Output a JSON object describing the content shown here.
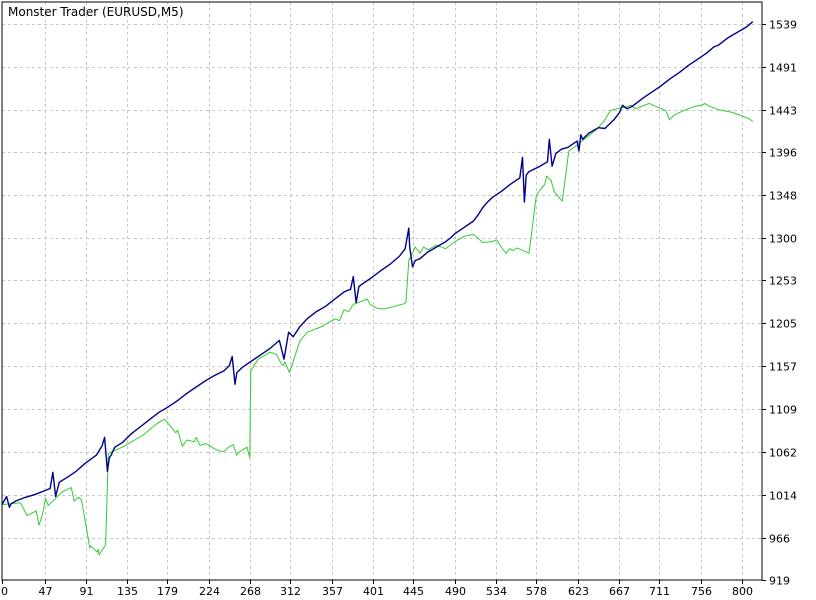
{
  "chart_data": {
    "type": "line",
    "title": "Monster Trader (EURUSD,M5)",
    "xlabel": "",
    "ylabel": "",
    "xlim": [
      0,
      822
    ],
    "ylim": [
      919,
      1563
    ],
    "x_ticks": [
      0,
      47,
      91,
      135,
      179,
      224,
      268,
      312,
      357,
      401,
      445,
      490,
      534,
      578,
      623,
      667,
      711,
      756,
      800
    ],
    "y_ticks": [
      919,
      966,
      1014,
      1062,
      1109,
      1157,
      1205,
      1253,
      1300,
      1348,
      1396,
      1443,
      1491,
      1539
    ],
    "grid": true,
    "legend": "none",
    "colors": {
      "balance": "#00008b",
      "equity": "#32cd32",
      "grid": "#c8c8c8",
      "axis": "#000000"
    },
    "series": [
      {
        "key": "equity",
        "x": [
          0,
          20,
          27,
          37,
          40,
          44,
          47,
          50,
          56,
          65,
          75,
          78,
          83,
          86,
          95,
          96,
          103,
          104,
          105,
          108,
          112,
          115,
          130,
          152,
          166,
          172,
          176,
          188,
          190,
          195,
          200,
          208,
          210,
          214,
          221,
          230,
          235,
          240,
          245,
          250,
          254,
          257,
          265,
          268,
          269,
          277,
          284,
          290,
          297,
          302,
          304,
          306,
          311,
          322,
          330,
          345,
          360,
          365,
          370,
          375,
          380,
          395,
          398,
          405,
          413,
          425,
          435,
          437,
          440,
          447,
          452,
          456,
          461,
          470,
          480,
          482,
          490,
          500,
          510,
          520,
          530,
          535,
          540,
          545,
          549,
          553,
          557,
          570,
          578,
          587,
          589,
          594,
          597,
          606,
          613,
          620,
          631,
          642,
          651,
          658,
          665,
          675,
          680,
          685,
          700,
          711,
          718,
          722,
          727,
          733,
          742,
          750,
          757,
          760,
          765,
          775,
          790,
          803,
          808,
          812
        ],
        "y": [
          1003,
          1005,
          991,
          996,
          980,
          993,
          1010,
          1002,
          1008,
          1017,
          1022,
          1007,
          1011,
          1008,
          955,
          957,
          950,
          953,
          947,
          952,
          958,
          1060,
          1067,
          1080,
          1092,
          1096,
          1098,
          1083,
          1086,
          1068,
          1075,
          1073,
          1078,
          1069,
          1071,
          1065,
          1063,
          1062,
          1067,
          1070,
          1058,
          1062,
          1067,
          1055,
          1152,
          1165,
          1169,
          1173,
          1170,
          1160,
          1158,
          1162,
          1150,
          1185,
          1195,
          1201,
          1210,
          1208,
          1220,
          1218,
          1226,
          1232,
          1226,
          1222,
          1221,
          1224,
          1227,
          1229,
          1275,
          1290,
          1283,
          1290,
          1287,
          1292,
          1288,
          1290,
          1296,
          1302,
          1304,
          1295,
          1296,
          1298,
          1290,
          1283,
          1288,
          1286,
          1289,
          1283,
          1348,
          1360,
          1369,
          1364,
          1352,
          1341,
          1397,
          1402,
          1411,
          1420,
          1430,
          1442,
          1444,
          1446,
          1448,
          1444,
          1450,
          1445,
          1442,
          1432,
          1437,
          1440,
          1444,
          1447,
          1448,
          1450,
          1447,
          1443,
          1440,
          1435,
          1433,
          1430
        ]
      },
      {
        "key": "balance",
        "x": [
          0,
          5,
          8,
          10,
          15,
          25,
          35,
          45,
          52,
          55,
          58,
          62,
          70,
          80,
          90,
          102,
          108,
          111,
          114,
          116,
          118,
          122,
          130,
          140,
          150,
          160,
          170,
          180,
          190,
          200,
          210,
          220,
          230,
          240,
          246,
          249,
          252,
          254,
          256,
          260,
          270,
          280,
          290,
          300,
          305,
          310,
          315,
          322,
          330,
          340,
          350,
          360,
          370,
          377,
          380,
          383,
          386,
          390,
          400,
          410,
          420,
          430,
          436,
          440,
          441,
          444,
          447,
          452,
          460,
          470,
          480,
          485,
          490,
          500,
          510,
          515,
          520,
          525,
          530,
          540,
          550,
          560,
          563,
          565,
          567,
          570,
          580,
          590,
          592,
          595,
          599,
          605,
          612,
          622,
          624,
          626,
          628,
          635,
          645,
          652,
          662,
          668,
          671,
          676,
          682,
          692,
          702,
          712,
          722,
          732,
          742,
          752,
          762,
          770,
          775,
          785,
          795,
          805,
          812
        ],
        "y": [
          1003,
          1012,
          1000,
          1004,
          1007,
          1011,
          1014,
          1018,
          1021,
          1039,
          1012,
          1028,
          1033,
          1040,
          1049,
          1058,
          1068,
          1078,
          1040,
          1055,
          1058,
          1067,
          1072,
          1082,
          1090,
          1098,
          1106,
          1112,
          1119,
          1127,
          1134,
          1141,
          1147,
          1152,
          1158,
          1168,
          1137,
          1150,
          1152,
          1156,
          1163,
          1170,
          1177,
          1186,
          1165,
          1195,
          1190,
          1201,
          1210,
          1218,
          1224,
          1232,
          1240,
          1243,
          1257,
          1228,
          1246,
          1249,
          1256,
          1264,
          1271,
          1280,
          1288,
          1311,
          1290,
          1268,
          1275,
          1277,
          1284,
          1290,
          1296,
          1300,
          1305,
          1312,
          1319,
          1326,
          1334,
          1340,
          1345,
          1352,
          1360,
          1367,
          1390,
          1340,
          1370,
          1374,
          1379,
          1385,
          1410,
          1380,
          1394,
          1399,
          1401,
          1408,
          1397,
          1415,
          1410,
          1417,
          1423,
          1422,
          1432,
          1440,
          1448,
          1444,
          1447,
          1455,
          1462,
          1469,
          1477,
          1484,
          1492,
          1499,
          1506,
          1513,
          1515,
          1523,
          1529,
          1535,
          1541
        ]
      }
    ]
  }
}
